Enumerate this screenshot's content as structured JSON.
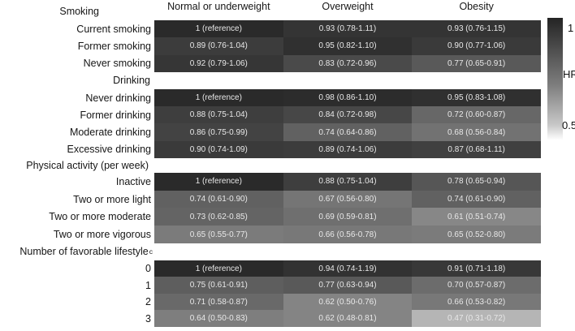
{
  "chart_data": {
    "type": "heatmap",
    "title": "",
    "columns": [
      "Normal or underweight",
      "Overweight",
      "Obesity"
    ],
    "colorbar": {
      "title": "HR",
      "top_tick": "1",
      "bottom_tick": "0.5",
      "max": 1,
      "min": 0.5,
      "position": "right"
    },
    "colors": {
      "cell_text": "#e8e8e8",
      "label_text": "#161616",
      "colorbar_top": "#242424",
      "colorbar_mid": "#7d7d7d",
      "colorbar_light": "#c8c8c8",
      "colorbar_bottom": "#fdfdfd",
      "hr_1_cell": "#2a2a2a",
      "hr_047_cell": "#b5b5b5"
    },
    "groups": [
      {
        "label": "Smoking",
        "rows": [
          {
            "label": "Current smoking",
            "cells": [
              {
                "hr": 1.0,
                "text": "1 (reference)"
              },
              {
                "hr": 0.93,
                "text": "0.93 (0.78-1.11)"
              },
              {
                "hr": 0.93,
                "text": "0.93 (0.76-1.15)"
              }
            ]
          },
          {
            "label": "Former smoking",
            "cells": [
              {
                "hr": 0.89,
                "text": "0.89 (0.76-1.04)"
              },
              {
                "hr": 0.95,
                "text": "0.95 (0.82-1.10)"
              },
              {
                "hr": 0.9,
                "text": "0.90 (0.77-1.06)"
              }
            ]
          },
          {
            "label": "Never smoking",
            "cells": [
              {
                "hr": 0.92,
                "text": "0.92 (0.79-1.06)"
              },
              {
                "hr": 0.83,
                "text": "0.83 (0.72-0.96)"
              },
              {
                "hr": 0.77,
                "text": "0.77 (0.65-0.91)"
              }
            ]
          }
        ]
      },
      {
        "label": "Drinking",
        "rows": [
          {
            "label": "Never drinking",
            "cells": [
              {
                "hr": 1.0,
                "text": "1 (reference)"
              },
              {
                "hr": 0.98,
                "text": "0.98 (0.86-1.10)"
              },
              {
                "hr": 0.95,
                "text": "0.95 (0.83-1.08)"
              }
            ]
          },
          {
            "label": "Former drinking",
            "cells": [
              {
                "hr": 0.88,
                "text": "0.88 (0.75-1.04)"
              },
              {
                "hr": 0.84,
                "text": "0.84 (0.72-0.98)"
              },
              {
                "hr": 0.72,
                "text": "0.72 (0.60-0.87)"
              }
            ]
          },
          {
            "label": "Moderate drinking",
            "cells": [
              {
                "hr": 0.86,
                "text": "0.86 (0.75-0.99)"
              },
              {
                "hr": 0.74,
                "text": "0.74 (0.64-0.86)"
              },
              {
                "hr": 0.68,
                "text": "0.68 (0.56-0.84)"
              }
            ]
          },
          {
            "label": "Excessive drinking",
            "cells": [
              {
                "hr": 0.9,
                "text": "0.90 (0.74-1.09)"
              },
              {
                "hr": 0.89,
                "text": "0.89 (0.74-1.06)"
              },
              {
                "hr": 0.87,
                "text": "0.87 (0.68-1.11)"
              }
            ]
          }
        ]
      },
      {
        "label": "Physical activity (per week)",
        "rows": [
          {
            "label": "Inactive",
            "cells": [
              {
                "hr": 1.0,
                "text": "1 (reference)"
              },
              {
                "hr": 0.88,
                "text": "0.88 (0.75-1.04)"
              },
              {
                "hr": 0.78,
                "text": "0.78 (0.65-0.94)"
              }
            ]
          },
          {
            "label": "Two or more light",
            "cells": [
              {
                "hr": 0.74,
                "text": "0.74 (0.61-0.90)"
              },
              {
                "hr": 0.67,
                "text": "0.67 (0.56-0.80)"
              },
              {
                "hr": 0.74,
                "text": "0.74 (0.61-0.90)"
              }
            ]
          },
          {
            "label": "Two or more moderate",
            "cells": [
              {
                "hr": 0.73,
                "text": "0.73 (0.62-0.85)"
              },
              {
                "hr": 0.69,
                "text": "0.69 (0.59-0.81)"
              },
              {
                "hr": 0.61,
                "text": "0.61 (0.51-0.74)"
              }
            ]
          },
          {
            "label": "Two or more vigorous",
            "cells": [
              {
                "hr": 0.65,
                "text": "0.65 (0.55-0.77)"
              },
              {
                "hr": 0.66,
                "text": "0.66 (0.56-0.78)"
              },
              {
                "hr": 0.65,
                "text": "0.65 (0.52-0.80)"
              }
            ]
          }
        ]
      },
      {
        "label": "Number of favorable lifestyle",
        "sup": "c",
        "rows": [
          {
            "label": "0",
            "cells": [
              {
                "hr": 1.0,
                "text": "1 (reference)"
              },
              {
                "hr": 0.94,
                "text": "0.94 (0.74-1.19)"
              },
              {
                "hr": 0.91,
                "text": "0.91 (0.71-1.18)"
              }
            ]
          },
          {
            "label": "1",
            "cells": [
              {
                "hr": 0.75,
                "text": "0.75 (0.61-0.91)"
              },
              {
                "hr": 0.77,
                "text": "0.77 (0.63-0.94)"
              },
              {
                "hr": 0.7,
                "text": "0.70 (0.57-0.87)"
              }
            ]
          },
          {
            "label": "2",
            "cells": [
              {
                "hr": 0.71,
                "text": "0.71 (0.58-0.87)"
              },
              {
                "hr": 0.62,
                "text": "0.62 (0.50-0.76)"
              },
              {
                "hr": 0.66,
                "text": "0.66 (0.53-0.82)"
              }
            ]
          },
          {
            "label": "3",
            "cells": [
              {
                "hr": 0.64,
                "text": "0.64 (0.50-0.83)"
              },
              {
                "hr": 0.62,
                "text": "0.62 (0.48-0.81)"
              },
              {
                "hr": 0.47,
                "text": "0.47 (0.31-0.72)"
              }
            ]
          }
        ]
      }
    ]
  }
}
